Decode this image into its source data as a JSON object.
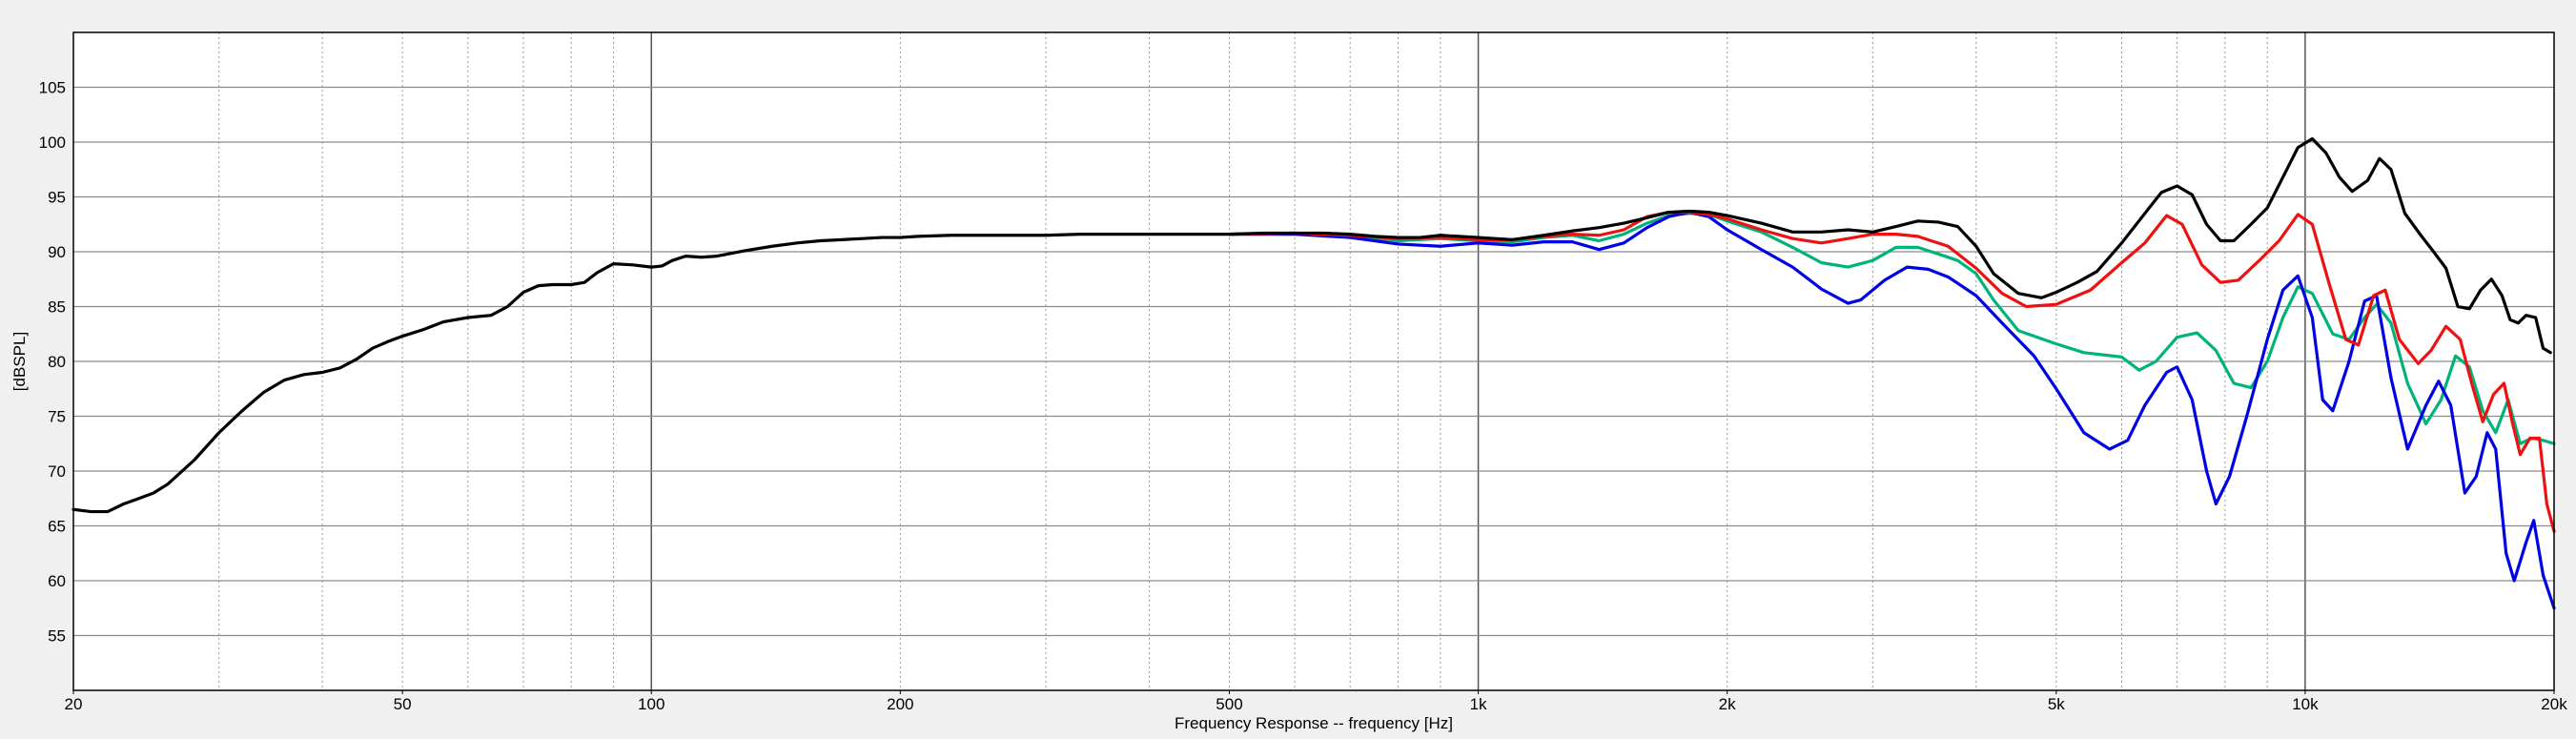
{
  "chart_data": {
    "type": "line",
    "xlabel": "Frequency Response -- frequency [Hz]",
    "ylabel": "[dBSPL]",
    "x_scale": "log",
    "xlim": [
      20,
      20000
    ],
    "ylim": [
      50,
      110
    ],
    "grid": true,
    "x_ticks": [
      {
        "value": 20,
        "label": "20"
      },
      {
        "value": 50,
        "label": "50"
      },
      {
        "value": 100,
        "label": "100"
      },
      {
        "value": 200,
        "label": "200"
      },
      {
        "value": 500,
        "label": "500"
      },
      {
        "value": 1000,
        "label": "1k"
      },
      {
        "value": 2000,
        "label": "2k"
      },
      {
        "value": 5000,
        "label": "5k"
      },
      {
        "value": 10000,
        "label": "10k"
      },
      {
        "value": 20000,
        "label": "20k"
      }
    ],
    "y_ticks": [
      55,
      60,
      65,
      70,
      75,
      80,
      85,
      90,
      95,
      100,
      105
    ],
    "series": [
      {
        "color": "#00b37a",
        "points": [
          [
            500,
            91.6
          ],
          [
            600,
            91.7
          ],
          [
            700,
            91.4
          ],
          [
            800,
            91.0
          ],
          [
            900,
            91.2
          ],
          [
            1000,
            91.0
          ],
          [
            1100,
            90.9
          ],
          [
            1200,
            91.3
          ],
          [
            1300,
            91.5
          ],
          [
            1400,
            91.0
          ],
          [
            1500,
            91.6
          ],
          [
            1600,
            92.6
          ],
          [
            1700,
            93.3
          ],
          [
            1800,
            93.5
          ],
          [
            1900,
            93.4
          ],
          [
            2000,
            92.8
          ],
          [
            2200,
            91.8
          ],
          [
            2400,
            90.4
          ],
          [
            2600,
            89.0
          ],
          [
            2800,
            88.6
          ],
          [
            3000,
            89.2
          ],
          [
            3200,
            90.4
          ],
          [
            3400,
            90.4
          ],
          [
            3600,
            89.8
          ],
          [
            3800,
            89.2
          ],
          [
            4000,
            88.0
          ],
          [
            4200,
            85.6
          ],
          [
            4500,
            82.8
          ],
          [
            5000,
            81.6
          ],
          [
            5400,
            80.8
          ],
          [
            6000,
            80.4
          ],
          [
            6300,
            79.2
          ],
          [
            6600,
            80.0
          ],
          [
            7000,
            82.2
          ],
          [
            7400,
            82.6
          ],
          [
            7800,
            81.0
          ],
          [
            8200,
            78.0
          ],
          [
            8600,
            77.6
          ],
          [
            9000,
            80.0
          ],
          [
            9400,
            84.0
          ],
          [
            9800,
            86.8
          ],
          [
            10200,
            86.2
          ],
          [
            10800,
            82.5
          ],
          [
            11300,
            82.0
          ],
          [
            11800,
            84.0
          ],
          [
            12200,
            85.2
          ],
          [
            12700,
            83.5
          ],
          [
            13300,
            78.0
          ],
          [
            14000,
            74.3
          ],
          [
            14600,
            76.5
          ],
          [
            15200,
            80.5
          ],
          [
            15800,
            79.5
          ],
          [
            16400,
            75.5
          ],
          [
            17000,
            73.5
          ],
          [
            17600,
            76.5
          ],
          [
            18200,
            72.5
          ],
          [
            18800,
            73.0
          ],
          [
            19400,
            72.8
          ],
          [
            20000,
            72.5
          ]
        ]
      },
      {
        "color": "#0000e6",
        "points": [
          [
            500,
            91.6
          ],
          [
            600,
            91.6
          ],
          [
            700,
            91.3
          ],
          [
            800,
            90.7
          ],
          [
            900,
            90.5
          ],
          [
            1000,
            90.8
          ],
          [
            1100,
            90.6
          ],
          [
            1200,
            90.9
          ],
          [
            1300,
            90.9
          ],
          [
            1400,
            90.2
          ],
          [
            1500,
            90.8
          ],
          [
            1600,
            92.2
          ],
          [
            1700,
            93.2
          ],
          [
            1800,
            93.6
          ],
          [
            1900,
            93.2
          ],
          [
            2000,
            92.0
          ],
          [
            2200,
            90.2
          ],
          [
            2400,
            88.6
          ],
          [
            2600,
            86.6
          ],
          [
            2800,
            85.3
          ],
          [
            2900,
            85.6
          ],
          [
            3100,
            87.4
          ],
          [
            3300,
            88.6
          ],
          [
            3500,
            88.4
          ],
          [
            3700,
            87.7
          ],
          [
            4000,
            86.0
          ],
          [
            4300,
            83.5
          ],
          [
            4700,
            80.5
          ],
          [
            5000,
            77.5
          ],
          [
            5400,
            73.5
          ],
          [
            5800,
            72.0
          ],
          [
            6100,
            72.8
          ],
          [
            6400,
            76.0
          ],
          [
            6800,
            79.0
          ],
          [
            7000,
            79.5
          ],
          [
            7300,
            76.5
          ],
          [
            7600,
            70.0
          ],
          [
            7800,
            67.0
          ],
          [
            8100,
            69.5
          ],
          [
            8500,
            75.0
          ],
          [
            9000,
            82.0
          ],
          [
            9400,
            86.5
          ],
          [
            9800,
            87.8
          ],
          [
            10200,
            84.0
          ],
          [
            10500,
            76.5
          ],
          [
            10800,
            75.5
          ],
          [
            11300,
            80.0
          ],
          [
            11800,
            85.5
          ],
          [
            12200,
            86.0
          ],
          [
            12700,
            78.5
          ],
          [
            13300,
            72.0
          ],
          [
            14000,
            76.0
          ],
          [
            14500,
            78.2
          ],
          [
            15000,
            76.0
          ],
          [
            15600,
            68.0
          ],
          [
            16100,
            69.5
          ],
          [
            16600,
            73.5
          ],
          [
            17000,
            72.0
          ],
          [
            17500,
            62.5
          ],
          [
            17900,
            60.0
          ],
          [
            18500,
            63.5
          ],
          [
            18900,
            65.5
          ],
          [
            19400,
            60.5
          ],
          [
            20000,
            57.5
          ]
        ]
      },
      {
        "color": "#ee1111",
        "points": [
          [
            500,
            91.6
          ],
          [
            600,
            91.7
          ],
          [
            700,
            91.5
          ],
          [
            800,
            91.2
          ],
          [
            900,
            91.3
          ],
          [
            1000,
            91.1
          ],
          [
            1100,
            91.1
          ],
          [
            1200,
            91.4
          ],
          [
            1300,
            91.6
          ],
          [
            1400,
            91.5
          ],
          [
            1500,
            92.0
          ],
          [
            1600,
            93.2
          ],
          [
            1700,
            93.6
          ],
          [
            1800,
            93.6
          ],
          [
            1900,
            93.4
          ],
          [
            2000,
            93.0
          ],
          [
            2200,
            92.0
          ],
          [
            2400,
            91.2
          ],
          [
            2600,
            90.8
          ],
          [
            2800,
            91.2
          ],
          [
            3000,
            91.6
          ],
          [
            3200,
            91.6
          ],
          [
            3400,
            91.4
          ],
          [
            3700,
            90.5
          ],
          [
            4000,
            88.5
          ],
          [
            4300,
            86.2
          ],
          [
            4600,
            85.0
          ],
          [
            5000,
            85.2
          ],
          [
            5500,
            86.5
          ],
          [
            6000,
            89.0
          ],
          [
            6400,
            90.8
          ],
          [
            6800,
            93.3
          ],
          [
            7100,
            92.5
          ],
          [
            7500,
            88.8
          ],
          [
            7900,
            87.2
          ],
          [
            8300,
            87.4
          ],
          [
            8800,
            89.2
          ],
          [
            9300,
            91.0
          ],
          [
            9800,
            93.4
          ],
          [
            10200,
            92.5
          ],
          [
            10700,
            87.0
          ],
          [
            11200,
            82.0
          ],
          [
            11600,
            81.5
          ],
          [
            12100,
            86.0
          ],
          [
            12500,
            86.5
          ],
          [
            13000,
            82.0
          ],
          [
            13700,
            79.8
          ],
          [
            14200,
            81.0
          ],
          [
            14800,
            83.2
          ],
          [
            15400,
            82.0
          ],
          [
            15900,
            78.0
          ],
          [
            16400,
            74.5
          ],
          [
            16900,
            77.0
          ],
          [
            17400,
            78.0
          ],
          [
            17800,
            74.5
          ],
          [
            18200,
            71.5
          ],
          [
            18700,
            73.0
          ],
          [
            19200,
            73.0
          ],
          [
            19600,
            67.0
          ],
          [
            20000,
            64.5
          ]
        ]
      },
      {
        "color": "#000000",
        "points": [
          [
            20,
            66.5
          ],
          [
            21,
            66.3
          ],
          [
            22,
            66.3
          ],
          [
            23,
            67.0
          ],
          [
            24,
            67.5
          ],
          [
            25,
            68.0
          ],
          [
            26,
            68.8
          ],
          [
            28,
            71.0
          ],
          [
            30,
            73.5
          ],
          [
            32,
            75.5
          ],
          [
            34,
            77.2
          ],
          [
            36,
            78.3
          ],
          [
            38,
            78.8
          ],
          [
            40,
            79.0
          ],
          [
            42,
            79.4
          ],
          [
            44,
            80.2
          ],
          [
            46,
            81.2
          ],
          [
            48,
            81.8
          ],
          [
            50,
            82.3
          ],
          [
            53,
            82.9
          ],
          [
            56,
            83.6
          ],
          [
            60,
            84.0
          ],
          [
            64,
            84.2
          ],
          [
            67,
            85.0
          ],
          [
            70,
            86.3
          ],
          [
            73,
            86.9
          ],
          [
            76,
            87.0
          ],
          [
            80,
            87.0
          ],
          [
            83,
            87.2
          ],
          [
            86,
            88.1
          ],
          [
            90,
            88.9
          ],
          [
            95,
            88.8
          ],
          [
            100,
            88.6
          ],
          [
            103,
            88.7
          ],
          [
            106,
            89.2
          ],
          [
            110,
            89.6
          ],
          [
            115,
            89.5
          ],
          [
            120,
            89.6
          ],
          [
            130,
            90.1
          ],
          [
            140,
            90.5
          ],
          [
            150,
            90.8
          ],
          [
            160,
            91.0
          ],
          [
            170,
            91.1
          ],
          [
            180,
            91.2
          ],
          [
            190,
            91.3
          ],
          [
            200,
            91.3
          ],
          [
            210,
            91.4
          ],
          [
            230,
            91.5
          ],
          [
            250,
            91.5
          ],
          [
            270,
            91.5
          ],
          [
            300,
            91.5
          ],
          [
            330,
            91.6
          ],
          [
            360,
            91.6
          ],
          [
            400,
            91.6
          ],
          [
            450,
            91.6
          ],
          [
            500,
            91.6
          ],
          [
            550,
            91.7
          ],
          [
            600,
            91.7
          ],
          [
            650,
            91.7
          ],
          [
            700,
            91.6
          ],
          [
            750,
            91.4
          ],
          [
            800,
            91.3
          ],
          [
            850,
            91.3
          ],
          [
            900,
            91.5
          ],
          [
            1000,
            91.3
          ],
          [
            1100,
            91.1
          ],
          [
            1200,
            91.5
          ],
          [
            1300,
            91.9
          ],
          [
            1400,
            92.2
          ],
          [
            1500,
            92.6
          ],
          [
            1600,
            93.1
          ],
          [
            1700,
            93.6
          ],
          [
            1800,
            93.7
          ],
          [
            1900,
            93.6
          ],
          [
            2000,
            93.3
          ],
          [
            2200,
            92.6
          ],
          [
            2400,
            91.8
          ],
          [
            2600,
            91.8
          ],
          [
            2800,
            92.0
          ],
          [
            3000,
            91.8
          ],
          [
            3200,
            92.3
          ],
          [
            3400,
            92.8
          ],
          [
            3600,
            92.7
          ],
          [
            3800,
            92.3
          ],
          [
            4000,
            90.5
          ],
          [
            4200,
            88.0
          ],
          [
            4500,
            86.2
          ],
          [
            4800,
            85.8
          ],
          [
            5000,
            86.3
          ],
          [
            5300,
            87.2
          ],
          [
            5600,
            88.2
          ],
          [
            6000,
            90.8
          ],
          [
            6400,
            93.5
          ],
          [
            6700,
            95.4
          ],
          [
            7000,
            96.0
          ],
          [
            7300,
            95.2
          ],
          [
            7600,
            92.5
          ],
          [
            7900,
            91.0
          ],
          [
            8200,
            91.0
          ],
          [
            8600,
            92.5
          ],
          [
            9000,
            94.0
          ],
          [
            9400,
            96.8
          ],
          [
            9800,
            99.5
          ],
          [
            10200,
            100.3
          ],
          [
            10600,
            99.0
          ],
          [
            11000,
            96.8
          ],
          [
            11400,
            95.5
          ],
          [
            11900,
            96.5
          ],
          [
            12300,
            98.5
          ],
          [
            12700,
            97.5
          ],
          [
            13200,
            93.5
          ],
          [
            13800,
            91.5
          ],
          [
            14300,
            90.0
          ],
          [
            14800,
            88.5
          ],
          [
            15300,
            85.0
          ],
          [
            15800,
            84.8
          ],
          [
            16300,
            86.5
          ],
          [
            16800,
            87.5
          ],
          [
            17300,
            86.0
          ],
          [
            17700,
            83.8
          ],
          [
            18100,
            83.5
          ],
          [
            18500,
            84.2
          ],
          [
            19000,
            84.0
          ],
          [
            19400,
            81.2
          ],
          [
            19800,
            80.8
          ]
        ]
      }
    ]
  }
}
